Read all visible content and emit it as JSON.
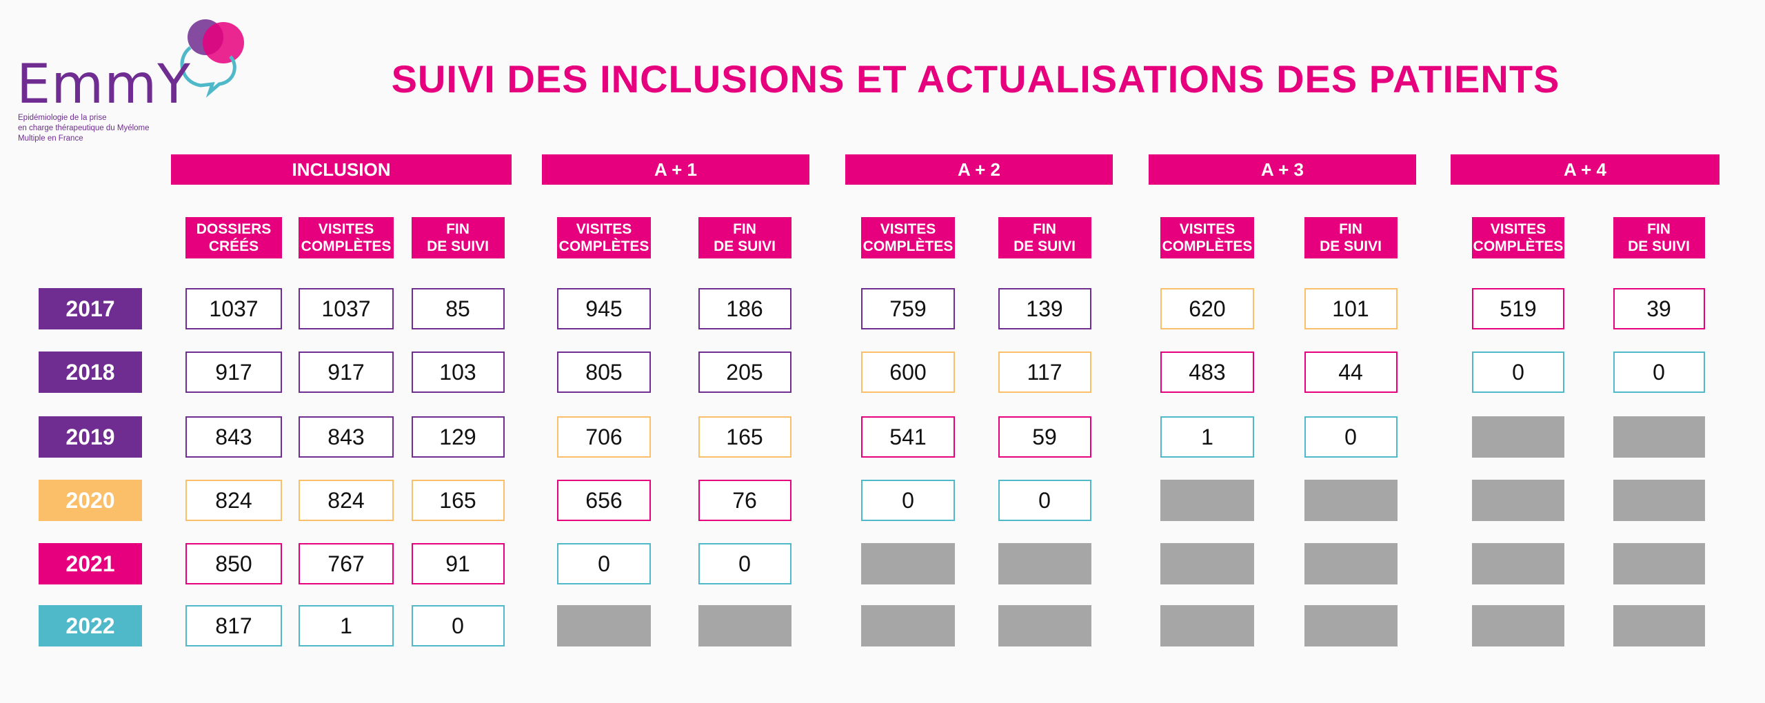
{
  "logo": {
    "wordmark": "EmmY",
    "tagline_lines": [
      "Epidémiologie de la prise",
      "en charge thérapeutique du Myélome",
      "Multiple en France"
    ]
  },
  "title": "SUIVI DES INCLUSIONS ET ACTUALISATIONS DES PATIENTS",
  "colors": {
    "purple": "#6f2c91",
    "magenta": "#e6007e",
    "orange": "#fbbf6a",
    "teal": "#4fb8c9",
    "gray": "#a6a6a6"
  },
  "groups": [
    "INCLUSION",
    "A + 1",
    "A + 2",
    "A + 3",
    "A + 4"
  ],
  "column_headers": [
    "DOSSIERS\nCRÉÉS",
    "VISITES\nCOMPLÈTES",
    "FIN\nDE SUIVI",
    "VISITES\nCOMPLÈTES",
    "FIN\nDE SUIVI",
    "VISITES\nCOMPLÈTES",
    "FIN\nDE SUIVI",
    "VISITES\nCOMPLÈTES",
    "FIN\nDE SUIVI",
    "VISITES\nCOMPLÈTES",
    "FIN\nDE SUIVI"
  ],
  "rows": [
    {
      "year": "2017",
      "color": "purple",
      "values": [
        "1037",
        "1037",
        "85",
        "945",
        "186",
        "759",
        "139",
        "620",
        "101",
        "519",
        "39"
      ],
      "colors": [
        "purple",
        "purple",
        "purple",
        "purple",
        "purple",
        "purple",
        "purple",
        "orange",
        "orange",
        "magenta",
        "magenta"
      ]
    },
    {
      "year": "2018",
      "color": "purple",
      "values": [
        "917",
        "917",
        "103",
        "805",
        "205",
        "600",
        "117",
        "483",
        "44",
        "0",
        "0"
      ],
      "colors": [
        "purple",
        "purple",
        "purple",
        "purple",
        "purple",
        "orange",
        "orange",
        "magenta",
        "magenta",
        "teal",
        "teal"
      ]
    },
    {
      "year": "2019",
      "color": "purple",
      "values": [
        "843",
        "843",
        "129",
        "706",
        "165",
        "541",
        "59",
        "1",
        "0",
        "",
        ""
      ],
      "colors": [
        "purple",
        "purple",
        "purple",
        "orange",
        "orange",
        "magenta",
        "magenta",
        "teal",
        "teal",
        "gray",
        "gray"
      ]
    },
    {
      "year": "2020",
      "color": "orange",
      "values": [
        "824",
        "824",
        "165",
        "656",
        "76",
        "0",
        "0",
        "",
        "",
        "",
        ""
      ],
      "colors": [
        "orange",
        "orange",
        "orange",
        "magenta",
        "magenta",
        "teal",
        "teal",
        "gray",
        "gray",
        "gray",
        "gray"
      ]
    },
    {
      "year": "2021",
      "color": "magenta",
      "values": [
        "850",
        "767",
        "91",
        "0",
        "0",
        "",
        "",
        "",
        "",
        "",
        ""
      ],
      "colors": [
        "magenta",
        "magenta",
        "magenta",
        "teal",
        "teal",
        "gray",
        "gray",
        "gray",
        "gray",
        "gray",
        "gray"
      ]
    },
    {
      "year": "2022",
      "color": "teal",
      "values": [
        "817",
        "1",
        "0",
        "",
        "",
        "",
        "",
        "",
        "",
        "",
        ""
      ],
      "colors": [
        "teal",
        "teal",
        "teal",
        "gray",
        "gray",
        "gray",
        "gray",
        "gray",
        "gray",
        "gray",
        "gray"
      ]
    }
  ]
}
